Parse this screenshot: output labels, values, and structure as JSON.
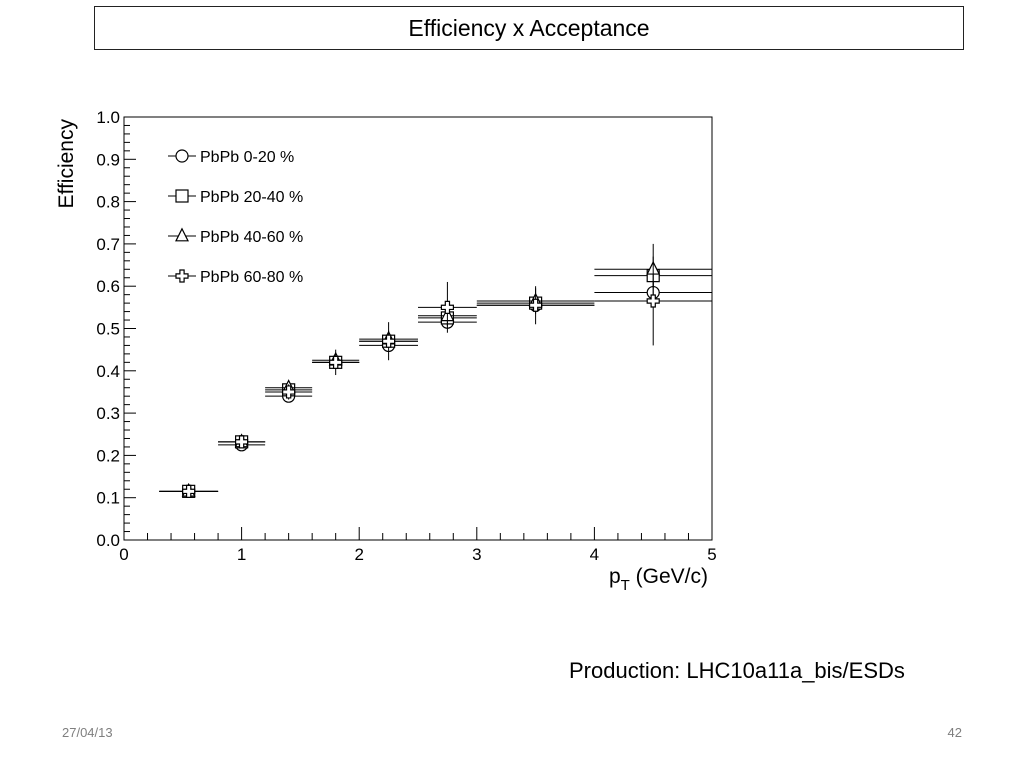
{
  "slide": {
    "title": "Efficiency x Acceptance",
    "production_note": "Production: LHC10a11a_bis/ESDs",
    "date": "27/04/13",
    "page_number": "42"
  },
  "chart_data": {
    "type": "scatter",
    "xlabel": "p_T (GeV/c)",
    "xlabel_main": "p",
    "xlabel_sub": "T",
    "xlabel_rest": " (GeV/c)",
    "ylabel": "Efficiency",
    "xlim": [
      0,
      5
    ],
    "ylim": [
      0,
      1.0
    ],
    "xticks": [
      0,
      1,
      2,
      3,
      4,
      5
    ],
    "xtick_labels": [
      "0",
      "1",
      "2",
      "3",
      "4",
      "5"
    ],
    "yticks": [
      0,
      0.1,
      0.2,
      0.3,
      0.4,
      0.5,
      0.6,
      0.7,
      0.8,
      0.9,
      1.0
    ],
    "ytick_labels": [
      "0.0",
      "0.1",
      "0.2",
      "0.3",
      "0.4",
      "0.5",
      "0.6",
      "0.7",
      "0.8",
      "0.9",
      "1.0"
    ],
    "grid": false,
    "legend_position": "top-left",
    "series": [
      {
        "name": "PbPb 0-20 %",
        "marker": "circle",
        "points": [
          {
            "x": 0.55,
            "y": 0.115,
            "xlo": 0.3,
            "xhi": 0.8,
            "yerr": 0.005
          },
          {
            "x": 1.0,
            "y": 0.225,
            "xlo": 0.8,
            "xhi": 1.2,
            "yerr": 0.007
          },
          {
            "x": 1.4,
            "y": 0.34,
            "xlo": 1.2,
            "xhi": 1.6,
            "yerr": 0.01
          },
          {
            "x": 1.8,
            "y": 0.42,
            "xlo": 1.6,
            "xhi": 2.0,
            "yerr": 0.01
          },
          {
            "x": 2.25,
            "y": 0.46,
            "xlo": 2.0,
            "xhi": 2.5,
            "yerr": 0.012
          },
          {
            "x": 2.75,
            "y": 0.515,
            "xlo": 2.5,
            "xhi": 3.0,
            "yerr": 0.015
          },
          {
            "x": 3.5,
            "y": 0.555,
            "xlo": 3.0,
            "xhi": 4.0,
            "yerr": 0.015
          },
          {
            "x": 4.5,
            "y": 0.585,
            "xlo": 4.0,
            "xhi": 5.0,
            "yerr": 0.025
          }
        ]
      },
      {
        "name": "PbPb 20-40 %",
        "marker": "square",
        "points": [
          {
            "x": 0.55,
            "y": 0.115,
            "xlo": 0.3,
            "xhi": 0.8,
            "yerr": 0.005
          },
          {
            "x": 1.0,
            "y": 0.232,
            "xlo": 0.8,
            "xhi": 1.2,
            "yerr": 0.008
          },
          {
            "x": 1.4,
            "y": 0.355,
            "xlo": 1.2,
            "xhi": 1.6,
            "yerr": 0.01
          },
          {
            "x": 1.8,
            "y": 0.42,
            "xlo": 1.6,
            "xhi": 2.0,
            "yerr": 0.012
          },
          {
            "x": 2.25,
            "y": 0.47,
            "xlo": 2.0,
            "xhi": 2.5,
            "yerr": 0.015
          },
          {
            "x": 2.75,
            "y": 0.525,
            "xlo": 2.5,
            "xhi": 3.0,
            "yerr": 0.018
          },
          {
            "x": 3.5,
            "y": 0.56,
            "xlo": 3.0,
            "xhi": 4.0,
            "yerr": 0.02
          },
          {
            "x": 4.5,
            "y": 0.625,
            "xlo": 4.0,
            "xhi": 5.0,
            "yerr": 0.03
          }
        ]
      },
      {
        "name": "PbPb 40-60 %",
        "marker": "triangle",
        "points": [
          {
            "x": 0.55,
            "y": 0.115,
            "xlo": 0.3,
            "xhi": 0.8,
            "yerr": 0.006
          },
          {
            "x": 1.0,
            "y": 0.232,
            "xlo": 0.8,
            "xhi": 1.2,
            "yerr": 0.01
          },
          {
            "x": 1.4,
            "y": 0.36,
            "xlo": 1.2,
            "xhi": 1.6,
            "yerr": 0.012
          },
          {
            "x": 1.8,
            "y": 0.425,
            "xlo": 1.6,
            "xhi": 2.0,
            "yerr": 0.015
          },
          {
            "x": 2.25,
            "y": 0.475,
            "xlo": 2.0,
            "xhi": 2.5,
            "yerr": 0.02
          },
          {
            "x": 2.75,
            "y": 0.53,
            "xlo": 2.5,
            "xhi": 3.0,
            "yerr": 0.025
          },
          {
            "x": 3.5,
            "y": 0.565,
            "xlo": 3.0,
            "xhi": 4.0,
            "yerr": 0.03
          },
          {
            "x": 4.5,
            "y": 0.64,
            "xlo": 4.0,
            "xhi": 5.0,
            "yerr": 0.06
          }
        ]
      },
      {
        "name": "PbPb 60-80 %",
        "marker": "cross",
        "points": [
          {
            "x": 0.55,
            "y": 0.115,
            "xlo": 0.3,
            "xhi": 0.8,
            "yerr": 0.008
          },
          {
            "x": 1.0,
            "y": 0.232,
            "xlo": 0.8,
            "xhi": 1.2,
            "yerr": 0.012
          },
          {
            "x": 1.4,
            "y": 0.35,
            "xlo": 1.2,
            "xhi": 1.6,
            "yerr": 0.018
          },
          {
            "x": 1.8,
            "y": 0.42,
            "xlo": 1.6,
            "xhi": 2.0,
            "yerr": 0.03
          },
          {
            "x": 2.25,
            "y": 0.47,
            "xlo": 2.0,
            "xhi": 2.5,
            "yerr": 0.045
          },
          {
            "x": 2.75,
            "y": 0.55,
            "xlo": 2.5,
            "xhi": 3.0,
            "yerr": 0.06
          },
          {
            "x": 3.5,
            "y": 0.555,
            "xlo": 3.0,
            "xhi": 4.0,
            "yerr": 0.045
          },
          {
            "x": 4.5,
            "y": 0.565,
            "xlo": 4.0,
            "xhi": 5.0,
            "yerr": 0.105
          }
        ]
      }
    ]
  }
}
